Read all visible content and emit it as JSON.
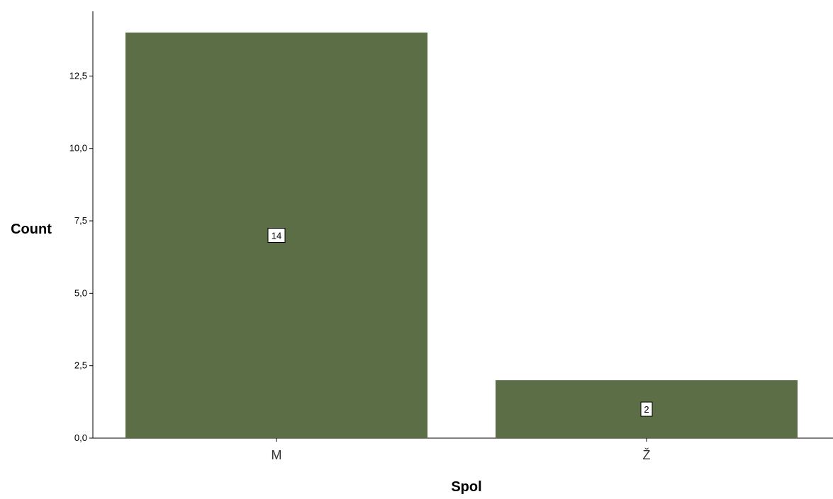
{
  "chart_data": {
    "type": "bar",
    "categories": [
      "M",
      "Ž"
    ],
    "values": [
      14,
      2
    ],
    "data_labels": [
      "14",
      "2"
    ],
    "xlabel": "Spol",
    "ylabel": "Count",
    "ylim": [
      0,
      14
    ],
    "y_ticks": [
      0,
      2.5,
      5,
      7.5,
      10,
      12.5
    ],
    "y_tick_labels": [
      "0,0",
      "2,5",
      "5,0",
      "7,5",
      "10,0",
      "12,5"
    ],
    "grid": false,
    "legend": "none",
    "colors": {
      "bar": "#5b6e45",
      "axis": "#000000",
      "label_box_border": "#000000",
      "label_box_fill": "#ffffff"
    }
  }
}
